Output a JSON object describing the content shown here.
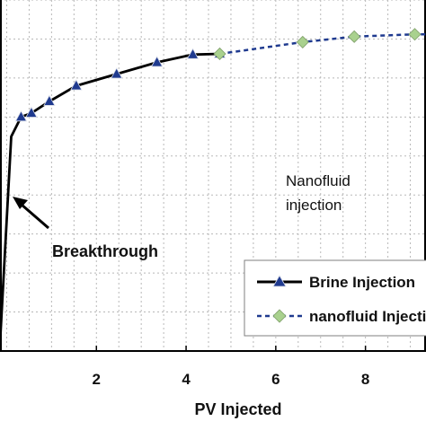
{
  "chart_data": {
    "type": "line",
    "xlabel": "PV Injected",
    "ylabel": "",
    "xlim": [
      -0.15,
      9.35
    ],
    "ylim": [
      0,
      0.9
    ],
    "x_ticks": [
      2,
      4,
      6,
      8
    ],
    "x_tick_labels": [
      "2",
      "4",
      "6",
      "8"
    ],
    "grid": true,
    "legend_position": "bottom-right",
    "series": [
      {
        "name": "Brine Injection",
        "color": "#000000",
        "style": "solid",
        "marker": "triangle",
        "marker_color": "#1f3a8f",
        "line_only_points": [
          [
            -0.15,
            0.02
          ],
          [
            0.1,
            0.55
          ]
        ],
        "x": [
          0.32,
          0.55,
          0.95,
          1.55,
          2.45,
          3.35,
          4.15,
          4.75
        ],
        "y": [
          0.6,
          0.61,
          0.64,
          0.68,
          0.71,
          0.74,
          0.76,
          0.762
        ]
      },
      {
        "name": "nanofluid Injection",
        "color": "#1f3a8f",
        "style": "dashed",
        "marker": "diamond",
        "marker_color": "#a9d18e",
        "line_only_points": [
          [
            9.35,
            0.812
          ]
        ],
        "x": [
          4.75,
          6.6,
          7.75,
          9.1
        ],
        "y": [
          0.762,
          0.792,
          0.806,
          0.812
        ]
      }
    ],
    "annotations": [
      {
        "text": "Breakthrough",
        "style": "bold"
      },
      {
        "text_lines": [
          "Nanofluid",
          "injection"
        ],
        "style": "regular"
      }
    ]
  }
}
